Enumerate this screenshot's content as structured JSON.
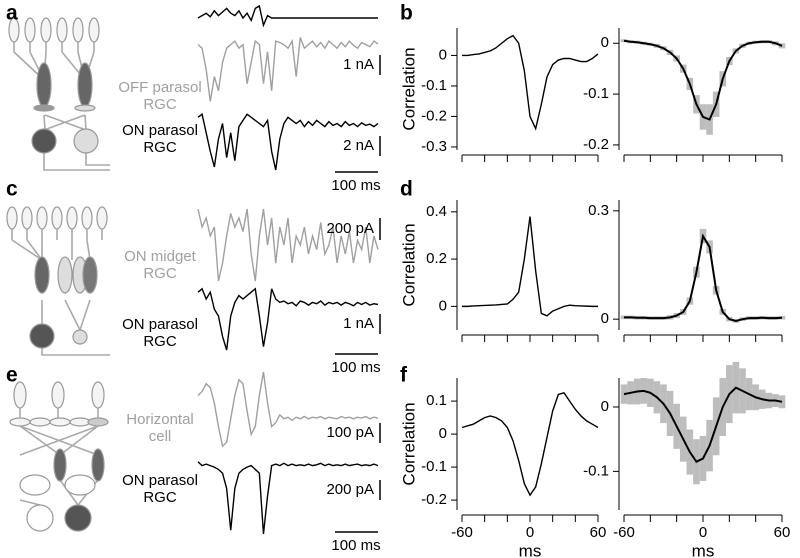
{
  "panel_labels": [
    "a",
    "b",
    "c",
    "d",
    "e",
    "f"
  ],
  "chart_data": [
    {
      "type": "trace",
      "color": "#000000",
      "ylim": [
        0,
        1
      ],
      "values": [
        0.5,
        0.6,
        0.7,
        0.55,
        0.8,
        0.6,
        0.75,
        0.9,
        0.7,
        0.6,
        0.8,
        0.5,
        0.7,
        0.4,
        0.9,
        1,
        0.2,
        0.6,
        0.5,
        0.5,
        0.5,
        0.5,
        0.5,
        0.5,
        0.5,
        0.5,
        0.5,
        0.5,
        0.5,
        0.5,
        0.5,
        0.5,
        0.5,
        0.5,
        0.5,
        0.5,
        0.5,
        0.5,
        0.5,
        0.5,
        0.5,
        0.5,
        0.5,
        0.5,
        0.5
      ]
    },
    {
      "type": "trace",
      "color": "#a0a0a0",
      "ylim": [
        0,
        1
      ],
      "label_lines": [
        "OFF parasol",
        "RGC"
      ],
      "scale_bar": "1 nA",
      "values": [
        0.85,
        0.8,
        0.5,
        0.05,
        0.4,
        0.2,
        0.6,
        0.8,
        0.85,
        0.9,
        0.8,
        0.85,
        0.3,
        0.6,
        0.9,
        0.85,
        0.3,
        0.75,
        0.2,
        0.9,
        0.88,
        0.85,
        0.8,
        0.9,
        0.4,
        0.95,
        0.8,
        0.85,
        0.9,
        0.82,
        0.88,
        0.8,
        0.9,
        0.85,
        0.8,
        0.88,
        0.82,
        0.9,
        0.84,
        0.8,
        0.88,
        0.85,
        0.82,
        0.9,
        0.86
      ]
    },
    {
      "type": "trace",
      "color": "#000000",
      "ylim": [
        0,
        1
      ],
      "label_lines": [
        "ON parasol",
        "RGC"
      ],
      "scale_bar": "2 nA",
      "time_scale_bar": "100 ms",
      "values": [
        0.85,
        0.9,
        0.6,
        0.3,
        0.05,
        0.5,
        0.75,
        0.2,
        0.6,
        0.15,
        0.7,
        0.8,
        0.9,
        0.85,
        0.8,
        0.75,
        0.7,
        0.8,
        0.3,
        0.0,
        0.5,
        0.75,
        0.85,
        0.8,
        0.75,
        0.8,
        0.7,
        0.78,
        0.72,
        0.8,
        0.75,
        0.7,
        0.78,
        0.72,
        0.75,
        0.7,
        0.78,
        0.72,
        0.75,
        0.7,
        0.76,
        0.72,
        0.74,
        0.7,
        0.75
      ]
    },
    {
      "type": "line",
      "ylabel": "Correlation",
      "xlim": [
        -60,
        60
      ],
      "ylim": [
        -0.31,
        0.09
      ],
      "yticks": [
        0,
        -0.1,
        -0.2,
        -0.3
      ],
      "xticks": [
        -60,
        0,
        60
      ],
      "xminor": [
        -40,
        -20,
        20,
        40
      ],
      "tick_labels": false,
      "x": [
        -60,
        -55,
        -50,
        -45,
        -40,
        -35,
        -30,
        -25,
        -20,
        -15,
        -10,
        -5,
        0,
        5,
        10,
        15,
        20,
        25,
        30,
        35,
        40,
        45,
        50,
        55,
        60
      ],
      "series": [
        {
          "color": "#000000",
          "values": [
            0,
            0,
            0.003,
            0.005,
            0.01,
            0.015,
            0.025,
            0.04,
            0.055,
            0.065,
            0.04,
            -0.05,
            -0.2,
            -0.24,
            -0.16,
            -0.07,
            -0.03,
            -0.015,
            -0.01,
            -0.01,
            -0.015,
            -0.02,
            -0.02,
            -0.01,
            0.005
          ]
        }
      ]
    },
    {
      "type": "line",
      "xlim": [
        -60,
        60
      ],
      "ylim": [
        -0.21,
        0.03
      ],
      "yticks": [
        0,
        -0.1,
        -0.2
      ],
      "xticks": [
        -60,
        0,
        60
      ],
      "xminor": [
        -40,
        -20,
        20,
        40
      ],
      "tick_labels": false,
      "band_color": "#bdbdbd",
      "x": [
        -60,
        -55,
        -50,
        -45,
        -40,
        -35,
        -30,
        -25,
        -20,
        -15,
        -10,
        -5,
        0,
        5,
        10,
        15,
        20,
        25,
        30,
        35,
        40,
        45,
        50,
        55,
        60
      ],
      "series": [
        {
          "color": "#000000",
          "values": [
            0.005,
            0.003,
            0.002,
            0,
            -0.002,
            -0.005,
            -0.01,
            -0.018,
            -0.03,
            -0.05,
            -0.08,
            -0.12,
            -0.145,
            -0.15,
            -0.12,
            -0.07,
            -0.035,
            -0.015,
            -0.005,
            0,
            0.002,
            0.003,
            0.003,
            0,
            -0.005
          ],
          "errors": [
            0.003,
            0.003,
            0.003,
            0.003,
            0.003,
            0.004,
            0.004,
            0.005,
            0.006,
            0.008,
            0.012,
            0.018,
            0.025,
            0.03,
            0.025,
            0.015,
            0.008,
            0.005,
            0.004,
            0.003,
            0.003,
            0.003,
            0.003,
            0.004,
            0.005
          ]
        }
      ]
    },
    {
      "type": "trace",
      "color": "#a0a0a0",
      "ylim": [
        0,
        1
      ],
      "label_lines": [
        "ON midget",
        "RGC"
      ],
      "scale_bar": "200 pA",
      "values": [
        0.9,
        0.7,
        0.8,
        0.6,
        0.7,
        0.1,
        0.3,
        0.6,
        0.85,
        0.7,
        0.8,
        0.65,
        0.9,
        0.4,
        0.1,
        0.6,
        0.9,
        0.5,
        0.8,
        0.3,
        0.7,
        0.5,
        0.8,
        0.3,
        0.6,
        0.5,
        0.7,
        0.4,
        0.6,
        0.45,
        0.75,
        0.4,
        0.5,
        0.7,
        0.3,
        0.6,
        0.4,
        0.65,
        0.3,
        0.55,
        0.45,
        0.7,
        0.3,
        0.6,
        0.45
      ]
    },
    {
      "type": "trace",
      "color": "#000000",
      "ylim": [
        0,
        1
      ],
      "label_lines": [
        "ON parasol",
        "RGC"
      ],
      "scale_bar": "1 nA",
      "time_scale_bar": "100 ms",
      "values": [
        0.85,
        0.9,
        0.75,
        0.85,
        0.6,
        0.5,
        0.2,
        0.0,
        0.5,
        0.7,
        0.8,
        0.75,
        0.8,
        0.85,
        0.9,
        0.5,
        0.05,
        0.4,
        0.9,
        0.75,
        0.7,
        0.72,
        0.68,
        0.7,
        0.65,
        0.72,
        0.7,
        0.66,
        0.7,
        0.68,
        0.72,
        0.66,
        0.7,
        0.68,
        0.7,
        0.66,
        0.7,
        0.68,
        0.65,
        0.7,
        0.67,
        0.7,
        0.66,
        0.68,
        0.67
      ]
    },
    {
      "type": "line",
      "ylabel": "Correlation",
      "xlim": [
        -60,
        60
      ],
      "ylim": [
        -0.1,
        0.45
      ],
      "yticks": [
        0,
        0.2,
        0.4
      ],
      "xticks": [
        -60,
        0,
        60
      ],
      "xminor": [
        -40,
        -20,
        20,
        40
      ],
      "tick_labels": false,
      "x": [
        -60,
        -55,
        -50,
        -45,
        -40,
        -35,
        -30,
        -25,
        -20,
        -15,
        -10,
        -5,
        0,
        5,
        10,
        15,
        20,
        25,
        30,
        35,
        40,
        45,
        50,
        55,
        60
      ],
      "series": [
        {
          "color": "#000000",
          "values": [
            0,
            0,
            0.002,
            0.003,
            0.004,
            0.005,
            0.006,
            0.008,
            0.01,
            0.03,
            0.06,
            0.2,
            0.38,
            0.15,
            -0.03,
            -0.04,
            -0.02,
            -0.01,
            0,
            0.005,
            0.003,
            0.002,
            0.001,
            0,
            0
          ]
        }
      ]
    },
    {
      "type": "line",
      "xlim": [
        -60,
        60
      ],
      "ylim": [
        -0.03,
        0.33
      ],
      "yticks": [
        0,
        0.3
      ],
      "xticks": [
        -60,
        0,
        60
      ],
      "xminor": [
        -40,
        -20,
        20,
        40
      ],
      "tick_labels": false,
      "band_color": "#bdbdbd",
      "x": [
        -60,
        -55,
        -50,
        -45,
        -40,
        -35,
        -30,
        -25,
        -20,
        -15,
        -10,
        -5,
        0,
        5,
        10,
        15,
        20,
        25,
        30,
        35,
        40,
        45,
        50,
        55,
        60
      ],
      "series": [
        {
          "color": "#000000",
          "values": [
            0.005,
            0.005,
            0.004,
            0.004,
            0.003,
            0.003,
            0.003,
            0.005,
            0.01,
            0.02,
            0.05,
            0.13,
            0.23,
            0.2,
            0.08,
            0.02,
            0,
            -0.005,
            0,
            0.003,
            0.003,
            0.004,
            0.003,
            0.003,
            0.004
          ],
          "errors": [
            0.005,
            0.005,
            0.005,
            0.005,
            0.005,
            0.005,
            0.005,
            0.006,
            0.007,
            0.008,
            0.01,
            0.015,
            0.02,
            0.018,
            0.012,
            0.008,
            0.006,
            0.005,
            0.005,
            0.005,
            0.005,
            0.005,
            0.005,
            0.005,
            0.005
          ]
        }
      ]
    },
    {
      "type": "trace",
      "color": "#a0a0a0",
      "ylim": [
        0,
        1
      ],
      "label_lines": [
        "Horizontal",
        "cell"
      ],
      "scale_bar": "100 pA",
      "values": [
        0.7,
        0.75,
        0.85,
        0.8,
        0.6,
        0.3,
        0.05,
        0.1,
        0.4,
        0.7,
        0.9,
        0.85,
        0.5,
        0.2,
        0.3,
        0.7,
        1.0,
        0.6,
        0.3,
        0.35,
        0.45,
        0.4,
        0.42,
        0.38,
        0.42,
        0.4,
        0.43,
        0.4,
        0.42,
        0.41,
        0.43,
        0.4,
        0.42,
        0.41,
        0.4,
        0.43,
        0.41,
        0.42,
        0.4,
        0.42,
        0.41,
        0.43,
        0.4,
        0.42,
        0.41
      ]
    },
    {
      "type": "trace",
      "color": "#000000",
      "ylim": [
        0,
        1
      ],
      "label_lines": [
        "ON parasol",
        "RGC"
      ],
      "scale_bar": "200 pA",
      "time_scale_bar": "100 ms",
      "values": [
        0.95,
        0.9,
        0.92,
        0.9,
        0.88,
        0.85,
        0.8,
        0.6,
        0.05,
        0.6,
        0.8,
        0.85,
        0.88,
        0.9,
        0.85,
        0.8,
        0.0,
        0.5,
        0.9,
        0.92,
        0.9,
        0.93,
        0.9,
        0.92,
        0.9,
        0.91,
        0.9,
        0.92,
        0.9,
        0.91,
        0.93,
        0.9,
        0.92,
        0.9,
        0.91,
        0.9,
        0.92,
        0.9,
        0.91,
        0.92,
        0.9,
        0.91,
        0.9,
        0.92,
        0.9
      ]
    },
    {
      "type": "line",
      "ylabel": "Correlation",
      "xlabel": "ms",
      "xlim": [
        -60,
        60
      ],
      "ylim": [
        -0.23,
        0.17
      ],
      "yticks": [
        0.1,
        0,
        -0.1,
        -0.2
      ],
      "xticks": [
        -60,
        0,
        60
      ],
      "xminor": [
        -40,
        -20,
        20,
        40
      ],
      "tick_labels": true,
      "x": [
        -60,
        -55,
        -50,
        -45,
        -40,
        -35,
        -30,
        -25,
        -20,
        -15,
        -10,
        -5,
        0,
        5,
        10,
        15,
        20,
        25,
        30,
        35,
        40,
        45,
        50,
        55,
        60
      ],
      "series": [
        {
          "color": "#000000",
          "values": [
            0.02,
            0.025,
            0.03,
            0.04,
            0.05,
            0.055,
            0.05,
            0.04,
            0.02,
            -0.02,
            -0.08,
            -0.15,
            -0.185,
            -0.16,
            -0.09,
            -0.01,
            0.07,
            0.12,
            0.125,
            0.1,
            0.075,
            0.055,
            0.04,
            0.03,
            0.02
          ]
        }
      ]
    },
    {
      "type": "line",
      "xlabel": "ms",
      "xlim": [
        -60,
        60
      ],
      "ylim": [
        -0.16,
        0.045
      ],
      "yticks": [
        0,
        -0.1
      ],
      "xticks": [
        -60,
        0,
        60
      ],
      "xminor": [
        -40,
        -20,
        20,
        40
      ],
      "tick_labels": true,
      "band_color": "#bdbdbd",
      "x": [
        -60,
        -55,
        -50,
        -45,
        -40,
        -35,
        -30,
        -25,
        -20,
        -15,
        -10,
        -5,
        0,
        5,
        10,
        15,
        20,
        25,
        30,
        35,
        40,
        45,
        50,
        55,
        60
      ],
      "series": [
        {
          "color": "#000000",
          "values": [
            0.02,
            0.022,
            0.024,
            0.025,
            0.022,
            0.015,
            0.005,
            -0.01,
            -0.03,
            -0.05,
            -0.07,
            -0.085,
            -0.08,
            -0.06,
            -0.03,
            0,
            0.02,
            0.03,
            0.025,
            0.02,
            0.015,
            0.012,
            0.01,
            0.01,
            0.008
          ],
          "errors": [
            0.015,
            0.018,
            0.02,
            0.02,
            0.022,
            0.025,
            0.03,
            0.035,
            0.035,
            0.035,
            0.035,
            0.035,
            0.035,
            0.04,
            0.045,
            0.045,
            0.045,
            0.04,
            0.035,
            0.025,
            0.02,
            0.015,
            0.012,
            0.01,
            0.01
          ]
        }
      ]
    }
  ]
}
